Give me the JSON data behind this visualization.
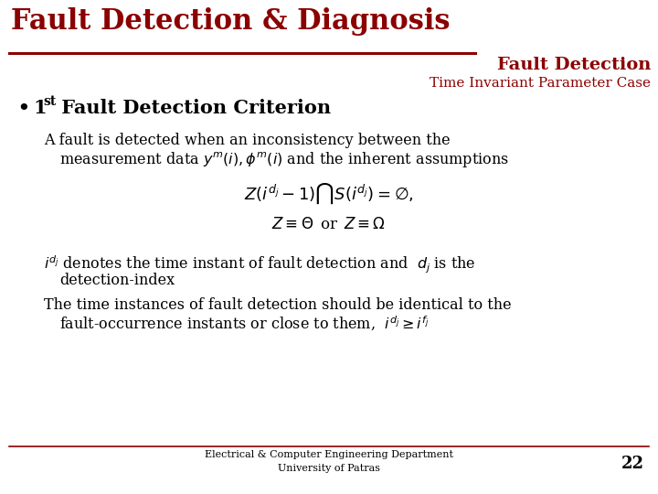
{
  "bg_color": "#ffffff",
  "dark_red": "#8B0000",
  "black": "#000000",
  "title_main": "Fault Detection & Diagnosis",
  "title_main_fontsize": 22,
  "title_sub1": "Fault Detection",
  "title_sub2": "Time Invariant Parameter Case",
  "title_sub1_fontsize": 14,
  "title_sub2_fontsize": 11,
  "bullet_heading_fontsize": 15,
  "line1": "A fault is detected when an inconsistency between the",
  "line2": "measurement data $y^{m}(i),\\phi^{m}(i)$ and the inherent assumptions",
  "formula1": "$Z\\left(i^{d_j}-1\\right)\\bigcap S\\left(i^{d_j}\\right)= \\varnothing,$",
  "formula2": "$Z \\equiv \\Theta\\,$ or $\\,Z \\equiv \\Omega$",
  "line3": "$i^{d_j}$ denotes the time instant of fault detection and  $d_j$ is the",
  "line4": "detection-index",
  "line5": "The time instances of fault detection should be identical to the",
  "line6": "fault-occurrence instants or close to them,  $i^{d_j} \\geq i^{f_j}$",
  "footer1": "Electrical & Computer Engineering Department",
  "footer2": "University of Patras",
  "page_num": "22",
  "body_fontsize": 11.5,
  "footer_fontsize": 8,
  "formula_fontsize": 13
}
